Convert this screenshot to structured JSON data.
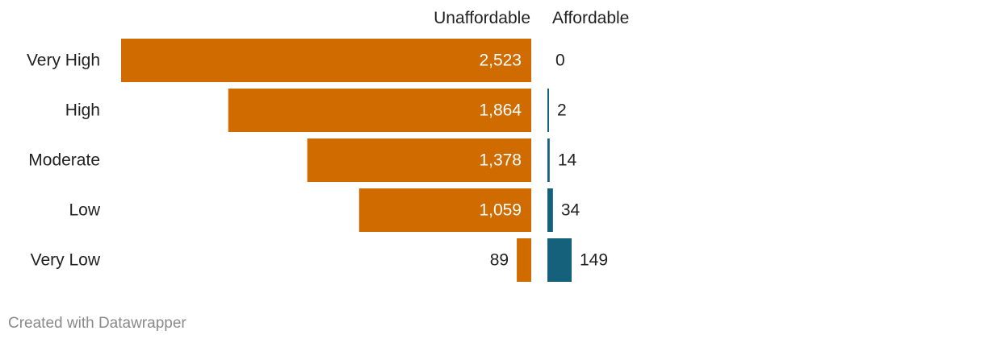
{
  "chart_data": {
    "type": "bar",
    "layout": "butterfly",
    "categories": [
      "Very High",
      "High",
      "Moderate",
      "Low",
      "Very Low"
    ],
    "series": [
      {
        "name": "Unaffordable",
        "values": [
          2523,
          1864,
          1378,
          1059,
          89
        ],
        "value_labels": [
          "2,523",
          "1,864",
          "1,378",
          "1,059",
          "89"
        ],
        "color": "#d06b00"
      },
      {
        "name": "Affordable",
        "values": [
          0,
          2,
          14,
          34,
          149
        ],
        "value_labels": [
          "0",
          "2",
          "14",
          "34",
          "149"
        ],
        "color": "#15607a"
      }
    ]
  },
  "footer": "Created with Datawrapper"
}
